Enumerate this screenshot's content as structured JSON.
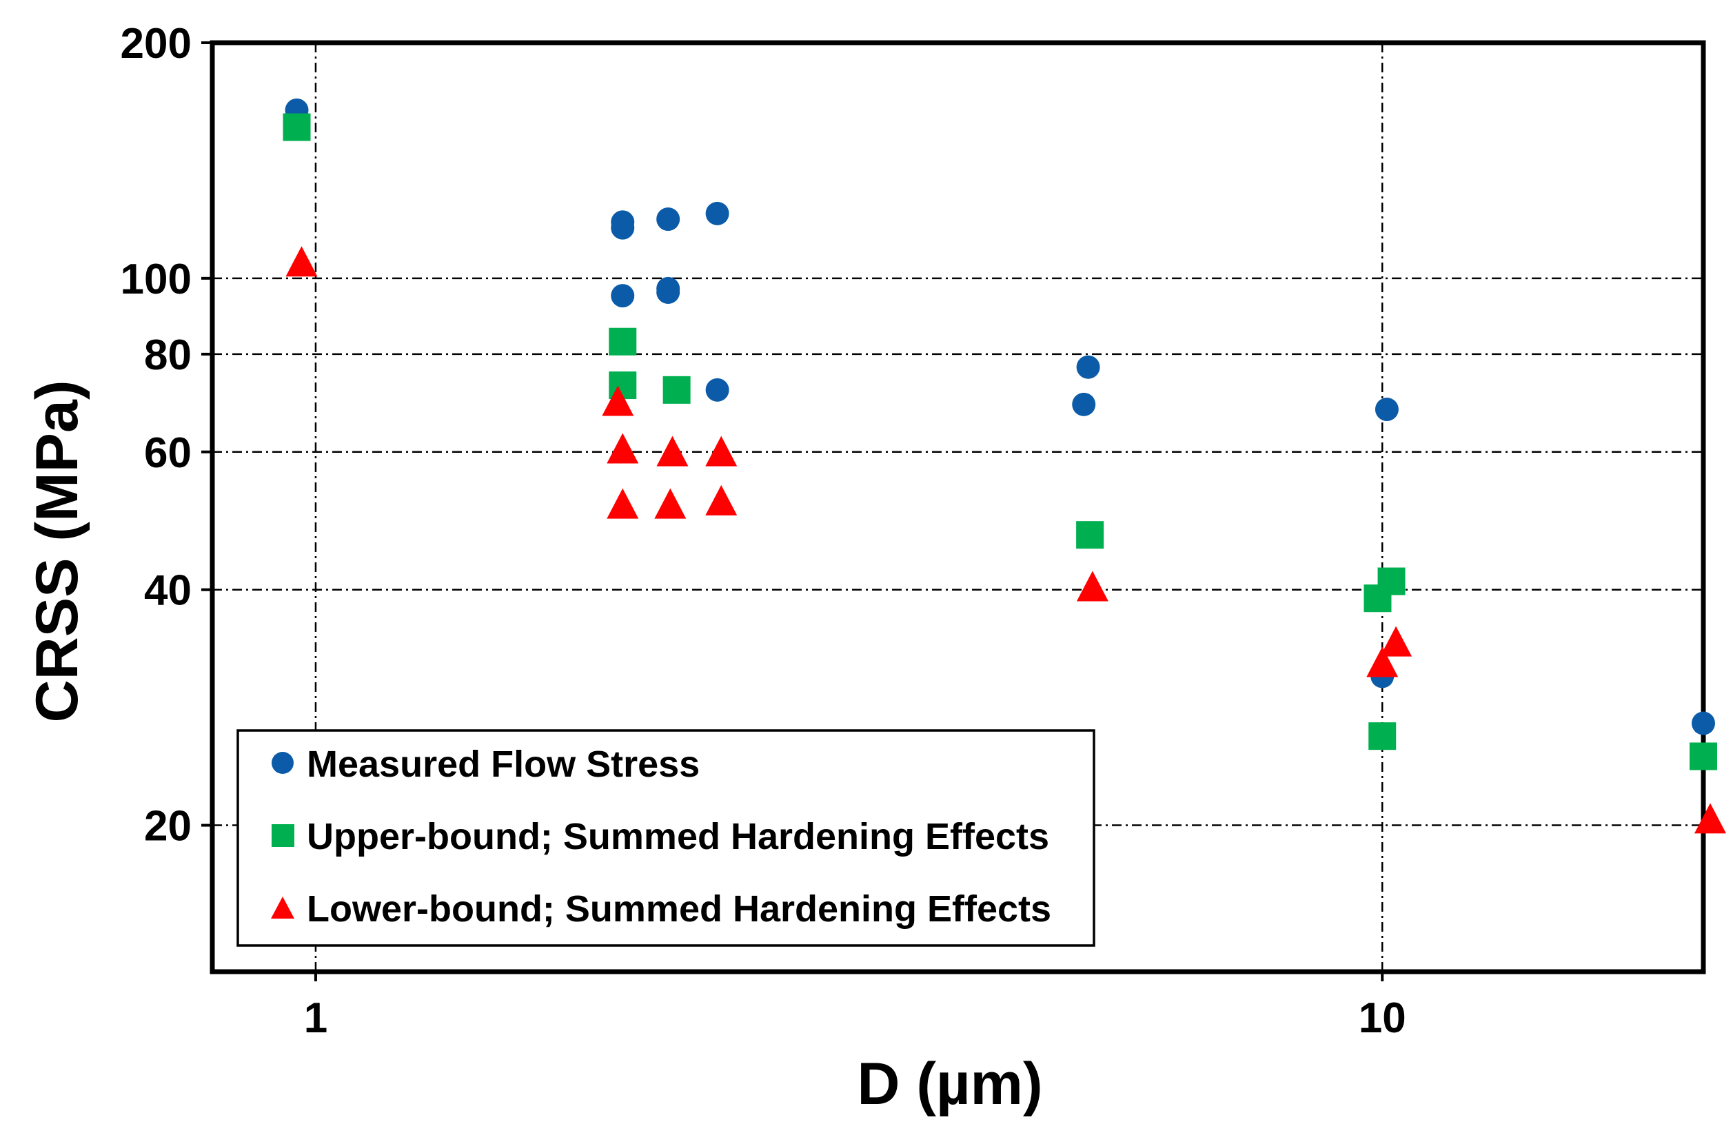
{
  "chart_data": {
    "type": "scatter",
    "x_scale": "log",
    "y_scale": "log",
    "xlabel": "D (µm)",
    "ylabel": "CRSS (MPa)",
    "xlim": [
      0.8,
      20
    ],
    "ylim": [
      13,
      200
    ],
    "x_ticks": [
      1,
      10
    ],
    "x_tick_labels": [
      "1",
      "10"
    ],
    "y_ticks": [
      20,
      40,
      60,
      80,
      100,
      200
    ],
    "y_tick_labels": [
      "20",
      "40",
      "60",
      "80",
      "100",
      "200"
    ],
    "grid": true,
    "legend_position": "bottom-left",
    "series": [
      {
        "name": "Measured Flow Stress",
        "marker": "circle",
        "color": "#0b5ba8",
        "points": [
          [
            0.96,
            164
          ],
          [
            1.94,
            118
          ],
          [
            1.94,
            116
          ],
          [
            2.14,
            119
          ],
          [
            2.38,
            121
          ],
          [
            1.94,
            95
          ],
          [
            2.14,
            97
          ],
          [
            2.14,
            96
          ],
          [
            2.38,
            72
          ],
          [
            5.3,
            77
          ],
          [
            5.25,
            69
          ],
          [
            10.1,
            68
          ],
          [
            10.0,
            31
          ],
          [
            20.0,
            27
          ]
        ]
      },
      {
        "name": "Upper-bound; Summed Hardening Effects",
        "marker": "square",
        "color": "#00b050",
        "points": [
          [
            0.96,
            156
          ],
          [
            1.94,
            83
          ],
          [
            1.94,
            73
          ],
          [
            2.18,
            72
          ],
          [
            5.32,
            47
          ],
          [
            9.9,
            39
          ],
          [
            10.2,
            41
          ],
          [
            10.0,
            26
          ],
          [
            20.0,
            24.5
          ]
        ]
      },
      {
        "name": "Lower-bound; Summed Hardening Effects",
        "marker": "triangle",
        "color": "#ff0000",
        "points": [
          [
            0.97,
            104
          ],
          [
            1.92,
            69
          ],
          [
            1.94,
            60
          ],
          [
            2.16,
            59.5
          ],
          [
            2.4,
            59.5
          ],
          [
            1.94,
            51
          ],
          [
            2.15,
            51
          ],
          [
            2.4,
            51.5
          ],
          [
            5.35,
            40
          ],
          [
            10.0,
            32
          ],
          [
            10.3,
            34
          ],
          [
            20.3,
            20.2
          ]
        ]
      }
    ]
  }
}
